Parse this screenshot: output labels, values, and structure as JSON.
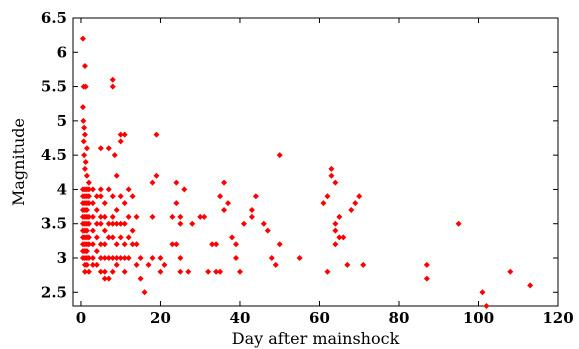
{
  "chart_data": {
    "type": "scatter",
    "title": "",
    "xlabel": "Day after mainshock",
    "ylabel": "Magnitude",
    "xlim": [
      -2,
      120
    ],
    "ylim": [
      2.3,
      6.5
    ],
    "xticks": [
      0,
      20,
      40,
      60,
      80,
      100,
      120
    ],
    "yticks": [
      2.5,
      3,
      3.5,
      4,
      4.5,
      5,
      5.5,
      6,
      6.5
    ],
    "xtick_labels": [
      "0",
      "20",
      "40",
      "60",
      "80",
      "100",
      "120"
    ],
    "ytick_labels": [
      "2.5",
      "3",
      "3.5",
      "4",
      "4.5",
      "5",
      "5.5",
      "6",
      "6.5"
    ],
    "grid": false,
    "marker_color": "#ff0000",
    "marker": "diamond",
    "points": [
      [
        0.5,
        6.2
      ],
      [
        1,
        5.8
      ],
      [
        0.7,
        5.5
      ],
      [
        1.2,
        5.5
      ],
      [
        0.5,
        5.2
      ],
      [
        0.6,
        5.0
      ],
      [
        0.8,
        4.9
      ],
      [
        1,
        4.8
      ],
      [
        0.7,
        4.7
      ],
      [
        1.5,
        4.6
      ],
      [
        0.8,
        4.5
      ],
      [
        1.2,
        4.4
      ],
      [
        1,
        4.3
      ],
      [
        1.5,
        4.2
      ],
      [
        2,
        4.1
      ],
      [
        0.5,
        4.0
      ],
      [
        1,
        4.0
      ],
      [
        1.5,
        4.0
      ],
      [
        2,
        4.0
      ],
      [
        0.5,
        3.9
      ],
      [
        1,
        3.9
      ],
      [
        1.5,
        3.9
      ],
      [
        2,
        3.9
      ],
      [
        0.5,
        3.8
      ],
      [
        1,
        3.8
      ],
      [
        1.5,
        3.8
      ],
      [
        2,
        3.8
      ],
      [
        0.5,
        3.7
      ],
      [
        1,
        3.7
      ],
      [
        1.5,
        3.7
      ],
      [
        0.5,
        3.6
      ],
      [
        1,
        3.6
      ],
      [
        1.5,
        3.6
      ],
      [
        2,
        3.6
      ],
      [
        0.5,
        3.5
      ],
      [
        1,
        3.5
      ],
      [
        1.5,
        3.5
      ],
      [
        2,
        3.5
      ],
      [
        0.5,
        3.4
      ],
      [
        1,
        3.4
      ],
      [
        1.5,
        3.4
      ],
      [
        0.5,
        3.3
      ],
      [
        1,
        3.3
      ],
      [
        1.5,
        3.3
      ],
      [
        2,
        3.3
      ],
      [
        0.5,
        3.2
      ],
      [
        1,
        3.2
      ],
      [
        1.5,
        3.2
      ],
      [
        2,
        3.2
      ],
      [
        0.5,
        3.1
      ],
      [
        1,
        3.1
      ],
      [
        1.5,
        3.1
      ],
      [
        0.5,
        3.0
      ],
      [
        1,
        3.0
      ],
      [
        1.5,
        3.0
      ],
      [
        2,
        3.0
      ],
      [
        1,
        2.9
      ],
      [
        1.5,
        2.9
      ],
      [
        1,
        2.8
      ],
      [
        2,
        2.8
      ],
      [
        3,
        4.0
      ],
      [
        3,
        3.8
      ],
      [
        3,
        3.6
      ],
      [
        3,
        3.4
      ],
      [
        3,
        3.2
      ],
      [
        3,
        3.0
      ],
      [
        3,
        2.9
      ],
      [
        4,
        3.9
      ],
      [
        4,
        3.7
      ],
      [
        4,
        3.5
      ],
      [
        4,
        3.3
      ],
      [
        4,
        3.1
      ],
      [
        4,
        2.9
      ],
      [
        5,
        4.6
      ],
      [
        5,
        4.0
      ],
      [
        5,
        3.9
      ],
      [
        5,
        3.6
      ],
      [
        5,
        3.5
      ],
      [
        5,
        3.2
      ],
      [
        5,
        3.0
      ],
      [
        5,
        2.8
      ],
      [
        6,
        3.8
      ],
      [
        6,
        3.6
      ],
      [
        6,
        3.4
      ],
      [
        6,
        3.2
      ],
      [
        6,
        3.0
      ],
      [
        6,
        2.8
      ],
      [
        6,
        2.7
      ],
      [
        7,
        4.6
      ],
      [
        7,
        4.0
      ],
      [
        7,
        3.5
      ],
      [
        7,
        3.3
      ],
      [
        7,
        3.0
      ],
      [
        7,
        2.7
      ],
      [
        8,
        5.6
      ],
      [
        8,
        5.5
      ],
      [
        8.5,
        4.5
      ],
      [
        8,
        3.9
      ],
      [
        8,
        3.6
      ],
      [
        8,
        3.5
      ],
      [
        8,
        3.3
      ],
      [
        8,
        3.0
      ],
      [
        8,
        2.8
      ],
      [
        9,
        4.2
      ],
      [
        9,
        3.7
      ],
      [
        9,
        3.5
      ],
      [
        9,
        3.2
      ],
      [
        9,
        3.0
      ],
      [
        9,
        2.9
      ],
      [
        10,
        4.8
      ],
      [
        10,
        4.7
      ],
      [
        10,
        3.9
      ],
      [
        10,
        3.5
      ],
      [
        10,
        3.3
      ],
      [
        10,
        3.0
      ],
      [
        11,
        4.8
      ],
      [
        11,
        3.8
      ],
      [
        11,
        3.5
      ],
      [
        11,
        3.2
      ],
      [
        11,
        3.0
      ],
      [
        11,
        2.8
      ],
      [
        12,
        4.0
      ],
      [
        12,
        3.6
      ],
      [
        12,
        3.3
      ],
      [
        12,
        3.0
      ],
      [
        13,
        3.9
      ],
      [
        13,
        3.4
      ],
      [
        13,
        3.2
      ],
      [
        14,
        3.6
      ],
      [
        14,
        3.2
      ],
      [
        14,
        2.9
      ],
      [
        15,
        3.0
      ],
      [
        15,
        2.7
      ],
      [
        16,
        2.5
      ],
      [
        17,
        2.9
      ],
      [
        18,
        4.1
      ],
      [
        18,
        3.6
      ],
      [
        18,
        3.0
      ],
      [
        19,
        4.8
      ],
      [
        19,
        4.2
      ],
      [
        20,
        3.0
      ],
      [
        20,
        2.8
      ],
      [
        21,
        2.9
      ],
      [
        23,
        3.6
      ],
      [
        23,
        3.2
      ],
      [
        24,
        4.1
      ],
      [
        24,
        3.8
      ],
      [
        24,
        3.2
      ],
      [
        25,
        3.6
      ],
      [
        25,
        3.5
      ],
      [
        25,
        3.0
      ],
      [
        25,
        2.8
      ],
      [
        26,
        4.0
      ],
      [
        27,
        2.8
      ],
      [
        28,
        3.5
      ],
      [
        30,
        3.6
      ],
      [
        31,
        3.6
      ],
      [
        32,
        2.8
      ],
      [
        33,
        3.2
      ],
      [
        34,
        3.2
      ],
      [
        34,
        2.8
      ],
      [
        35,
        2.8
      ],
      [
        35,
        3.9
      ],
      [
        36,
        4.1
      ],
      [
        36,
        3.7
      ],
      [
        37,
        3.8
      ],
      [
        38,
        3.3
      ],
      [
        39,
        3.0
      ],
      [
        39,
        3.2
      ],
      [
        40,
        2.8
      ],
      [
        41,
        3.5
      ],
      [
        43,
        3.6
      ],
      [
        43,
        3.7
      ],
      [
        44,
        3.9
      ],
      [
        46,
        3.5
      ],
      [
        47,
        3.4
      ],
      [
        48,
        3.0
      ],
      [
        49,
        2.9
      ],
      [
        50,
        4.5
      ],
      [
        50,
        3.2
      ],
      [
        55,
        3.0
      ],
      [
        61,
        3.8
      ],
      [
        62,
        3.9
      ],
      [
        62,
        2.8
      ],
      [
        63,
        4.3
      ],
      [
        63,
        4.2
      ],
      [
        64,
        4.1
      ],
      [
        64,
        3.5
      ],
      [
        64,
        3.4
      ],
      [
        64,
        3.2
      ],
      [
        65,
        3.6
      ],
      [
        65,
        3.3
      ],
      [
        66,
        3.3
      ],
      [
        67,
        2.9
      ],
      [
        68,
        3.7
      ],
      [
        69,
        3.8
      ],
      [
        70,
        3.9
      ],
      [
        71,
        2.9
      ],
      [
        87,
        2.9
      ],
      [
        87,
        2.7
      ],
      [
        95,
        3.5
      ],
      [
        101,
        2.5
      ],
      [
        102,
        2.3
      ],
      [
        108,
        2.8
      ],
      [
        113,
        2.6
      ]
    ]
  }
}
